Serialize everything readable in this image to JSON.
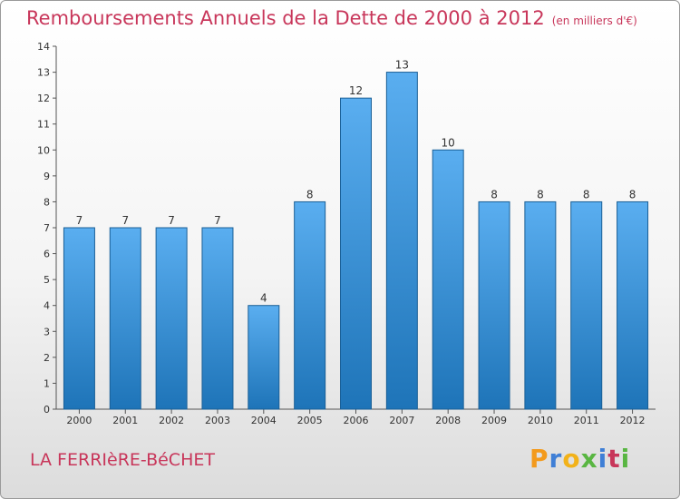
{
  "title": "Remboursements Annuels de la Dette de 2000 à 2012",
  "unit_label": "(en milliers d'€)",
  "town": "LA FERRIèRE-BéCHET",
  "logo_text": "Proxiti",
  "colors": {
    "title": "#c8365a",
    "bar_top": "#5aaef0",
    "bar_bottom": "#1e74b8"
  },
  "chart_data": {
    "type": "bar",
    "categories": [
      "2000",
      "2001",
      "2002",
      "2003",
      "2004",
      "2005",
      "2006",
      "2007",
      "2008",
      "2009",
      "2010",
      "2011",
      "2012"
    ],
    "values": [
      7,
      7,
      7,
      7,
      4,
      8,
      12,
      13,
      10,
      8,
      8,
      8,
      8
    ],
    "data_labels": [
      "7",
      "7",
      "7",
      "7",
      "4",
      "8",
      "12",
      "13",
      "10",
      "8",
      "8",
      "8",
      "8"
    ],
    "ylim": [
      0,
      14
    ],
    "yticks": [
      0,
      1,
      2,
      3,
      4,
      5,
      6,
      7,
      8,
      9,
      10,
      11,
      12,
      13,
      14
    ],
    "ytick_labels": [
      "0",
      "1",
      "2",
      "3",
      "4",
      "5",
      "6",
      "7",
      "8",
      "9",
      "10",
      "11",
      "12",
      "13",
      "14"
    ],
    "grid": false,
    "legend": "none"
  }
}
